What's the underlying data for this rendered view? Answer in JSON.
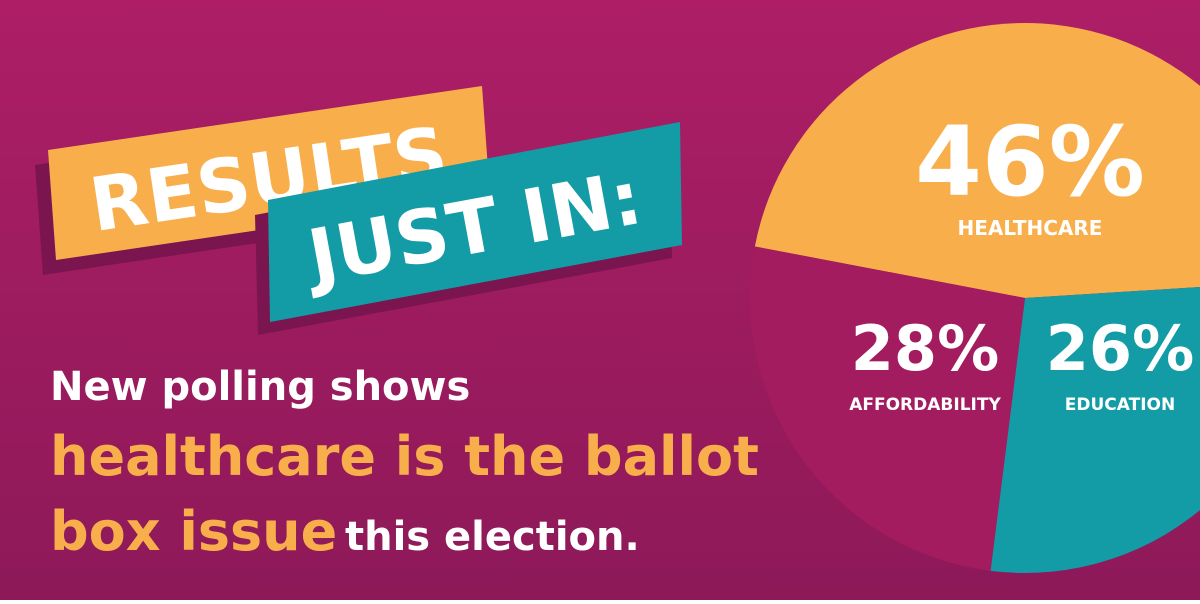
{
  "banner": {
    "line1": "RESULTS",
    "line2": "JUST IN:"
  },
  "message": {
    "line1": "New polling shows",
    "line2": "healthcare is the ballot",
    "line3_highlight": "box issue",
    "line3_rest": "this election."
  },
  "chart_data": {
    "type": "pie",
    "categories": [
      "HEALTHCARE",
      "AFFORDABILITY",
      "EDUCATION"
    ],
    "values": [
      46,
      28,
      26
    ],
    "value_labels": [
      "46%",
      "28%",
      "26%"
    ],
    "colors": [
      "#f9ae4c",
      "#139ba6",
      "#a31c60"
    ]
  }
}
